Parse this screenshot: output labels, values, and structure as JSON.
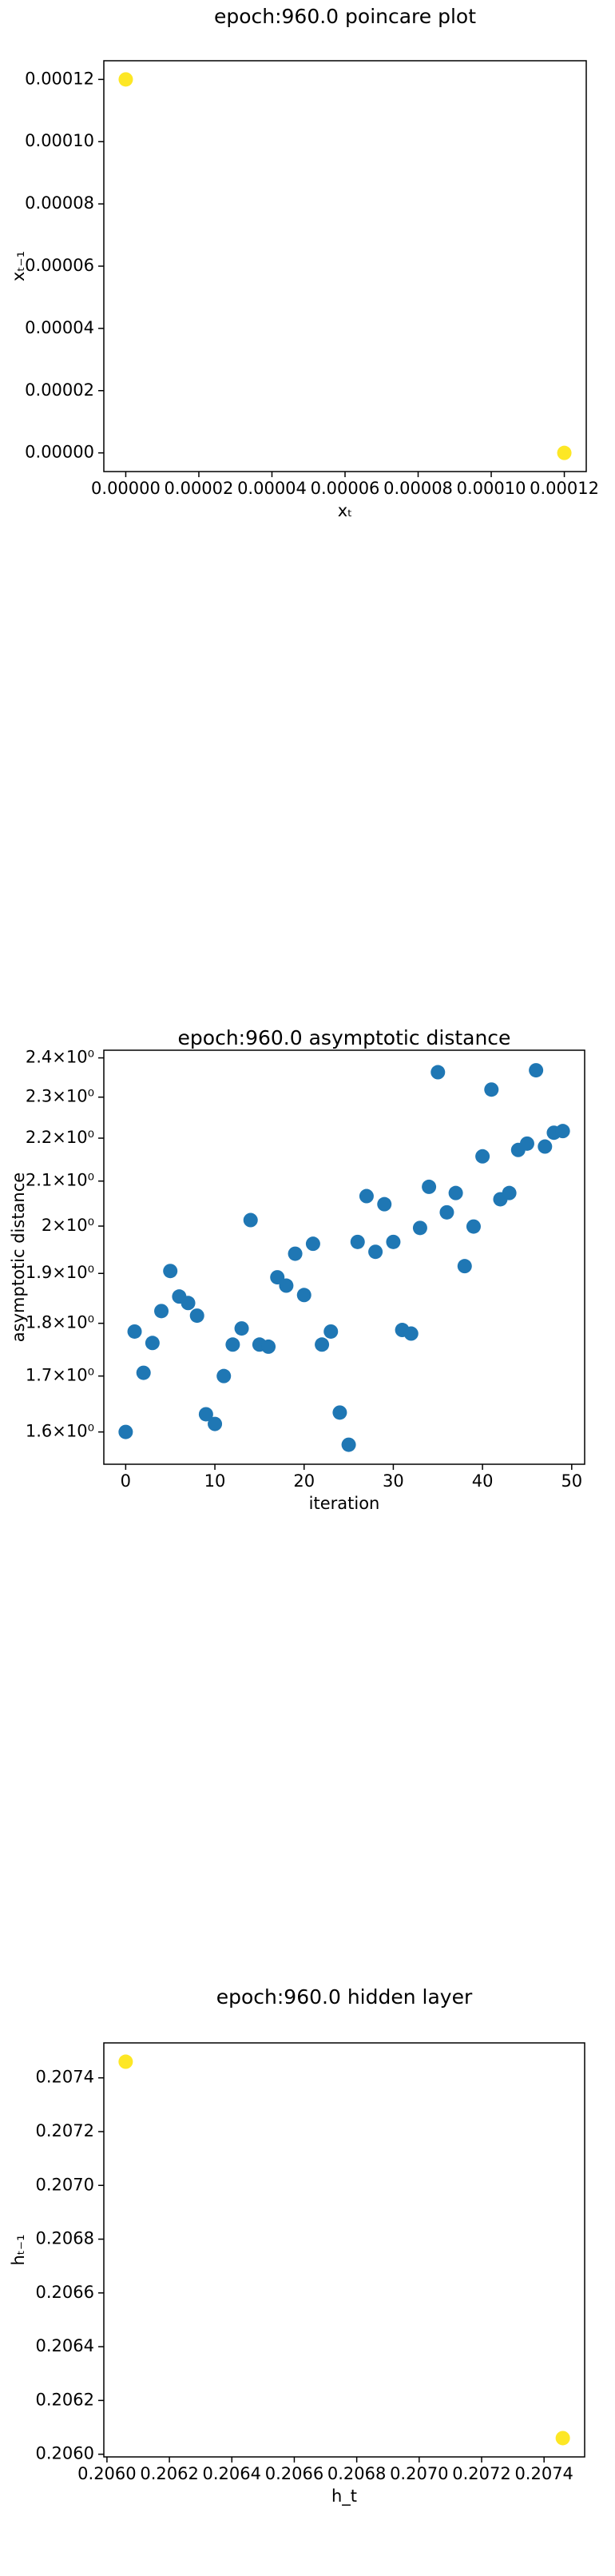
{
  "chart_data": [
    {
      "type": "scatter",
      "title": "epoch:960.0 poincare plot",
      "xlabel": "xₜ",
      "ylabel": "xₜ₋₁",
      "x": [
        0,
        0.00012
      ],
      "values": [
        0.00012,
        0
      ],
      "color": "#fde725",
      "xlim": [
        -6e-06,
        0.000126
      ],
      "ylim": [
        -6e-06,
        0.000126
      ],
      "xticks": [
        {
          "value": 0,
          "label": "0.00000"
        },
        {
          "value": 2e-05,
          "label": "0.00002"
        },
        {
          "value": 4e-05,
          "label": "0.00004"
        },
        {
          "value": 6e-05,
          "label": "0.00006"
        },
        {
          "value": 8e-05,
          "label": "0.00008"
        },
        {
          "value": 0.0001,
          "label": "0.00010"
        },
        {
          "value": 0.00012,
          "label": "0.00012"
        }
      ],
      "yticks": [
        {
          "value": 0,
          "label": "0.00000"
        },
        {
          "value": 2e-05,
          "label": "0.00002"
        },
        {
          "value": 4e-05,
          "label": "0.00004"
        },
        {
          "value": 6e-05,
          "label": "0.00006"
        },
        {
          "value": 8e-05,
          "label": "0.00008"
        },
        {
          "value": 0.0001,
          "label": "0.00010"
        },
        {
          "value": 0.00012,
          "label": "0.00012"
        }
      ]
    },
    {
      "type": "scatter",
      "title": "epoch:960.0 asymptotic distance",
      "xlabel": "iteration",
      "ylabel": "asymptotic distance",
      "x": [
        0,
        1,
        2,
        3,
        4,
        5,
        6,
        7,
        8,
        9,
        10,
        11,
        12,
        13,
        14,
        15,
        16,
        17,
        18,
        19,
        20,
        21,
        22,
        23,
        24,
        25,
        26,
        27,
        28,
        29,
        30,
        31,
        32,
        33,
        34,
        35,
        36,
        37,
        38,
        39,
        40,
        41,
        42,
        43,
        44,
        45,
        46,
        47,
        48,
        49
      ],
      "values": [
        1.6,
        1.784,
        1.706,
        1.762,
        1.824,
        1.905,
        1.853,
        1.84,
        1.815,
        1.631,
        1.614,
        1.7,
        1.759,
        1.79,
        2.013,
        1.759,
        1.755,
        1.892,
        1.875,
        1.941,
        1.856,
        1.962,
        1.759,
        1.784,
        1.634,
        1.578,
        1.966,
        2.066,
        1.945,
        2.048,
        1.966,
        1.787,
        1.78,
        1.996,
        2.087,
        2.363,
        2.03,
        2.073,
        1.915,
        1.999,
        2.157,
        2.319,
        2.059,
        2.073,
        2.172,
        2.187,
        2.368,
        2.18,
        2.213,
        2.217
      ],
      "color": "#1f77b4",
      "log_y": true,
      "xlim": [
        -2.45,
        51.45
      ],
      "ylim": [
        1.545,
        2.42
      ],
      "xticks": [
        0,
        10,
        20,
        30,
        40,
        50
      ],
      "yticks": [
        {
          "value": 1.6,
          "label": "1.6×10⁰"
        },
        {
          "value": 1.7,
          "label": "1.7×10⁰"
        },
        {
          "value": 1.8,
          "label": "1.8×10⁰"
        },
        {
          "value": 1.9,
          "label": "1.9×10⁰"
        },
        {
          "value": 2,
          "label": "2×10⁰"
        },
        {
          "value": 2.1,
          "label": "2.1×10⁰"
        },
        {
          "value": 2.2,
          "label": "2.2×10⁰"
        },
        {
          "value": 2.3,
          "label": "2.3×10⁰"
        },
        {
          "value": 2.4,
          "label": "2.4×10⁰"
        }
      ]
    },
    {
      "type": "scatter",
      "title": "epoch:960.0 hidden layer",
      "xlabel": "h_t",
      "ylabel": "hₜ₋₁",
      "x": [
        0.20606,
        0.20746
      ],
      "values": [
        0.20746,
        0.20606
      ],
      "color": "#fde725",
      "xlim": [
        0.20599,
        0.20753
      ],
      "ylim": [
        0.20599,
        0.20753
      ],
      "xticks": [
        {
          "value": 0.206,
          "label": "0.2060"
        },
        {
          "value": 0.2062,
          "label": "0.2062"
        },
        {
          "value": 0.2064,
          "label": "0.2064"
        },
        {
          "value": 0.2066,
          "label": "0.2066"
        },
        {
          "value": 0.2068,
          "label": "0.2068"
        },
        {
          "value": 0.207,
          "label": "0.2070"
        },
        {
          "value": 0.2072,
          "label": "0.2072"
        },
        {
          "value": 0.2074,
          "label": "0.2074"
        }
      ],
      "yticks": [
        {
          "value": 0.206,
          "label": "0.2060"
        },
        {
          "value": 0.2062,
          "label": "0.2062"
        },
        {
          "value": 0.2064,
          "label": "0.2064"
        },
        {
          "value": 0.2066,
          "label": "0.2066"
        },
        {
          "value": 0.2068,
          "label": "0.2068"
        },
        {
          "value": 0.207,
          "label": "0.2070"
        },
        {
          "value": 0.2072,
          "label": "0.2072"
        },
        {
          "value": 0.2074,
          "label": "0.2074"
        }
      ]
    }
  ]
}
